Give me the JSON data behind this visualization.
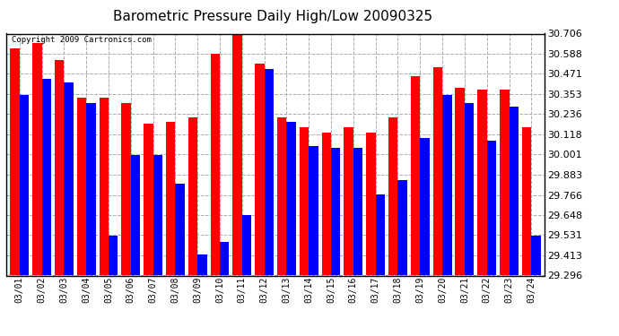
{
  "title": "Barometric Pressure Daily High/Low 20090325",
  "copyright": "Copyright 2009 Cartronics.com",
  "dates": [
    "03/01",
    "03/02",
    "03/03",
    "03/04",
    "03/05",
    "03/06",
    "03/07",
    "03/08",
    "03/09",
    "03/10",
    "03/11",
    "03/12",
    "03/13",
    "03/14",
    "03/15",
    "03/16",
    "03/17",
    "03/18",
    "03/19",
    "03/20",
    "03/21",
    "03/22",
    "03/23",
    "03/24"
  ],
  "highs": [
    30.62,
    30.65,
    30.55,
    30.33,
    30.33,
    30.3,
    30.18,
    30.19,
    30.22,
    30.59,
    30.71,
    30.53,
    30.22,
    30.16,
    30.13,
    30.16,
    30.13,
    30.22,
    30.46,
    30.51,
    30.39,
    30.38,
    30.38,
    30.16
  ],
  "lows": [
    30.35,
    30.44,
    30.42,
    30.3,
    29.53,
    30.0,
    30.0,
    29.83,
    29.42,
    29.49,
    29.65,
    30.5,
    30.19,
    30.05,
    30.04,
    30.04,
    29.77,
    29.85,
    30.1,
    30.35,
    30.3,
    30.08,
    30.28,
    29.53
  ],
  "ylim": [
    29.296,
    30.706
  ],
  "yticks": [
    29.296,
    29.413,
    29.531,
    29.648,
    29.766,
    29.883,
    30.001,
    30.118,
    30.236,
    30.353,
    30.471,
    30.588,
    30.706
  ],
  "high_color": "#ff0000",
  "low_color": "#0000ff",
  "bg_color": "#ffffff",
  "grid_color": "#aaaaaa",
  "title_fontsize": 11,
  "label_fontsize": 7,
  "ytick_fontsize": 8
}
